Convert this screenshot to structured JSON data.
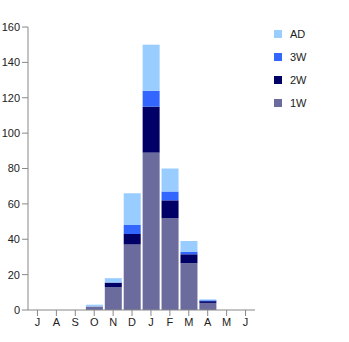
{
  "chart_data": {
    "type": "bar",
    "stacked": true,
    "legend": "upper right",
    "grid": false,
    "categories": [
      "J",
      "A",
      "S",
      "O",
      "N",
      "D",
      "J",
      "F",
      "M",
      "A",
      "M",
      "J"
    ],
    "ylim": [
      0,
      160
    ],
    "yticks": [
      0,
      20,
      40,
      60,
      80,
      100,
      120,
      140,
      160
    ],
    "series": [
      {
        "name": "1W",
        "color": "#6B6B9E",
        "values": [
          0,
          0,
          0,
          2,
          13,
          37,
          89,
          52,
          26.5,
          4,
          0,
          0
        ]
      },
      {
        "name": "2W",
        "color": "#000066",
        "values": [
          0,
          0,
          0,
          0,
          2.5,
          6,
          26,
          10,
          5,
          1,
          0,
          0
        ]
      },
      {
        "name": "3W",
        "color": "#3366FF",
        "values": [
          0,
          0,
          0,
          0,
          0,
          5,
          9,
          5,
          1.5,
          0.5,
          0,
          0
        ]
      },
      {
        "name": "AD",
        "color": "#99CCFF",
        "values": [
          0,
          0,
          0,
          1,
          2.5,
          18,
          26,
          13,
          6,
          0.5,
          0,
          0
        ]
      }
    ]
  }
}
